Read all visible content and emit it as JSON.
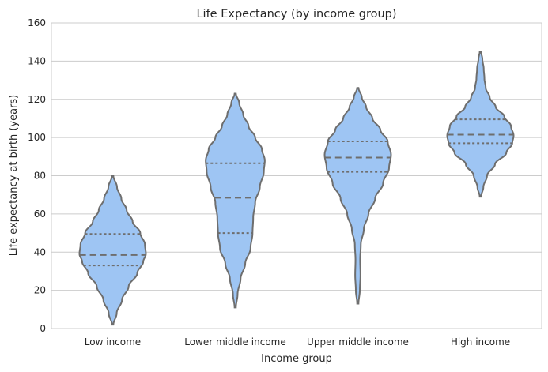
{
  "chart_data": {
    "type": "violin",
    "title": "Life Expectancy (by income group)",
    "xlabel": "Income group",
    "ylabel": "Life expectancy at birth (years)",
    "ylim": [
      0,
      160
    ],
    "yticks": [
      "0",
      "20",
      "40",
      "60",
      "80",
      "100",
      "120",
      "140",
      "160"
    ],
    "grid": true,
    "inner": "quartile",
    "color": "#9ec5f3",
    "edge_color": "#6e6e6e",
    "categories": [
      "Low income",
      "Lower middle income",
      "Upper middle income",
      "High income"
    ],
    "violins": [
      {
        "category": "Low income",
        "min": 2,
        "max": 80,
        "q1": 33,
        "median": 38.5,
        "q3": 49.5,
        "density": [
          [
            2,
            0.02
          ],
          [
            8,
            0.12
          ],
          [
            15,
            0.28
          ],
          [
            22,
            0.48
          ],
          [
            29,
            0.74
          ],
          [
            35,
            0.92
          ],
          [
            39,
            1.0
          ],
          [
            44,
            0.97
          ],
          [
            50,
            0.83
          ],
          [
            56,
            0.6
          ],
          [
            62,
            0.42
          ],
          [
            68,
            0.26
          ],
          [
            74,
            0.13
          ],
          [
            80,
            0.02
          ]
        ]
      },
      {
        "category": "Lower middle income",
        "min": 11,
        "max": 123,
        "q1": 50,
        "median": 68.5,
        "q3": 86.5,
        "density": [
          [
            11,
            0.02
          ],
          [
            18,
            0.07
          ],
          [
            26,
            0.16
          ],
          [
            34,
            0.3
          ],
          [
            42,
            0.46
          ],
          [
            50,
            0.52
          ],
          [
            58,
            0.54
          ],
          [
            66,
            0.6
          ],
          [
            74,
            0.74
          ],
          [
            82,
            0.86
          ],
          [
            88,
            0.89
          ],
          [
            94,
            0.8
          ],
          [
            100,
            0.6
          ],
          [
            106,
            0.4
          ],
          [
            112,
            0.24
          ],
          [
            118,
            0.12
          ],
          [
            123,
            0.02
          ]
        ]
      },
      {
        "category": "Upper middle income",
        "min": 13,
        "max": 126,
        "q1": 82,
        "median": 89.5,
        "q3": 98,
        "density": [
          [
            13,
            0.02
          ],
          [
            20,
            0.06
          ],
          [
            28,
            0.08
          ],
          [
            36,
            0.07
          ],
          [
            44,
            0.09
          ],
          [
            52,
            0.18
          ],
          [
            60,
            0.32
          ],
          [
            68,
            0.52
          ],
          [
            76,
            0.76
          ],
          [
            84,
            0.94
          ],
          [
            91,
            1.0
          ],
          [
            98,
            0.9
          ],
          [
            104,
            0.68
          ],
          [
            110,
            0.44
          ],
          [
            116,
            0.25
          ],
          [
            121,
            0.12
          ],
          [
            126,
            0.02
          ]
        ]
      },
      {
        "category": "High income",
        "min": 69,
        "max": 145,
        "q1": 97,
        "median": 101.5,
        "q3": 109.5,
        "density": [
          [
            69,
            0.02
          ],
          [
            74,
            0.09
          ],
          [
            80,
            0.2
          ],
          [
            86,
            0.44
          ],
          [
            92,
            0.78
          ],
          [
            97,
            0.96
          ],
          [
            101,
            1.0
          ],
          [
            106,
            0.92
          ],
          [
            111,
            0.72
          ],
          [
            116,
            0.46
          ],
          [
            121,
            0.28
          ],
          [
            126,
            0.16
          ],
          [
            131,
            0.12
          ],
          [
            136,
            0.1
          ],
          [
            141,
            0.06
          ],
          [
            145,
            0.02
          ]
        ]
      }
    ]
  }
}
